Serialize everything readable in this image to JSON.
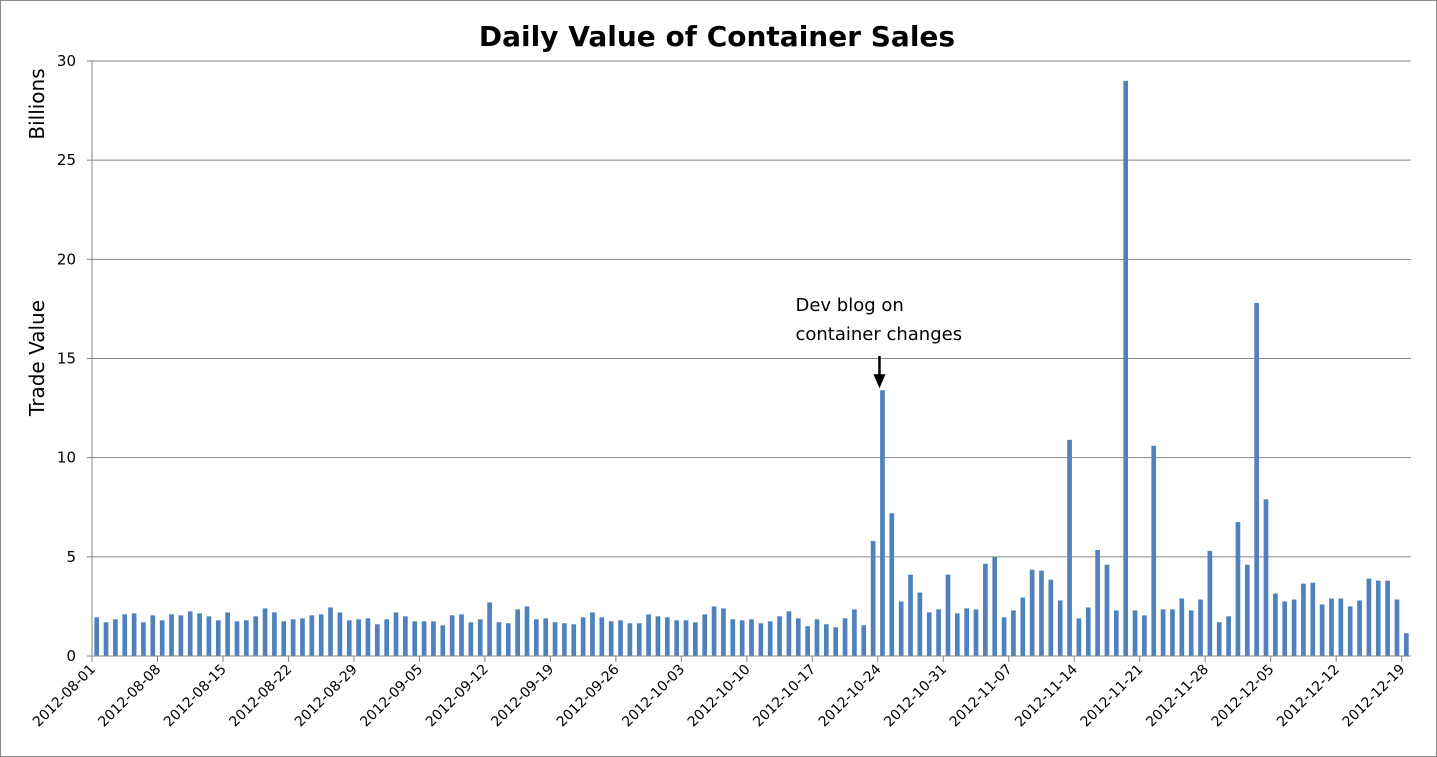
{
  "chart_data": {
    "type": "bar",
    "title": "Daily Value of Container Sales",
    "ylabel": "Trade Value",
    "yunit": "Billions",
    "ylim": [
      0,
      30
    ],
    "yticks": [
      0,
      5,
      10,
      15,
      20,
      25,
      30
    ],
    "grid": true,
    "bar_color": "#4F81BD",
    "x_start": "2012-08-01",
    "x_end": "2012-12-19",
    "x_tick_labels": [
      "2012-08-01",
      "2012-08-08",
      "2012-08-15",
      "2012-08-22",
      "2012-08-29",
      "2012-09-05",
      "2012-09-12",
      "2012-09-19",
      "2012-09-26",
      "2012-10-03",
      "2012-10-10",
      "2012-10-17",
      "2012-10-24",
      "2012-10-31",
      "2012-11-07",
      "2012-11-14",
      "2012-11-21",
      "2012-11-28",
      "2012-12-05",
      "2012-12-12",
      "2012-12-19"
    ],
    "values": [
      1.95,
      1.7,
      1.85,
      2.1,
      2.15,
      1.7,
      2.05,
      1.8,
      2.1,
      2.05,
      2.25,
      2.15,
      2.0,
      1.8,
      2.2,
      1.75,
      1.8,
      2.0,
      2.4,
      2.2,
      1.75,
      1.85,
      1.9,
      2.05,
      2.1,
      2.45,
      2.2,
      1.8,
      1.85,
      1.9,
      1.6,
      1.85,
      2.2,
      2.0,
      1.75,
      1.75,
      1.75,
      1.55,
      2.05,
      2.1,
      1.7,
      1.85,
      2.7,
      1.7,
      1.65,
      2.35,
      2.5,
      1.85,
      1.9,
      1.7,
      1.65,
      1.6,
      1.95,
      2.2,
      1.95,
      1.75,
      1.8,
      1.65,
      1.65,
      2.1,
      2.0,
      1.95,
      1.8,
      1.8,
      1.7,
      2.1,
      2.5,
      2.4,
      1.85,
      1.8,
      1.85,
      1.65,
      1.75,
      2.0,
      2.25,
      1.9,
      1.5,
      1.85,
      1.6,
      1.45,
      1.9,
      2.35,
      1.55,
      5.8,
      13.4,
      7.2,
      2.75,
      4.1,
      3.2,
      2.2,
      2.35,
      4.1,
      2.15,
      2.4,
      2.35,
      4.65,
      5.0,
      1.95,
      2.3,
      2.95,
      4.35,
      4.3,
      3.85,
      2.8,
      10.9,
      1.9,
      2.45,
      5.35,
      4.6,
      2.3,
      29.0,
      2.3,
      2.05,
      10.6,
      2.35,
      2.35,
      2.9,
      2.3,
      2.85,
      5.3,
      1.7,
      2.0,
      6.75,
      4.6,
      17.8,
      7.9,
      3.15,
      2.75,
      2.85,
      3.65,
      3.7,
      2.6,
      2.9,
      2.9,
      2.5,
      2.8,
      3.9,
      3.8,
      3.8,
      2.85,
      1.15
    ],
    "annotations": [
      {
        "text_lines": [
          "Dev blog on",
          "container changes"
        ],
        "date": "2012-10-24"
      }
    ]
  }
}
